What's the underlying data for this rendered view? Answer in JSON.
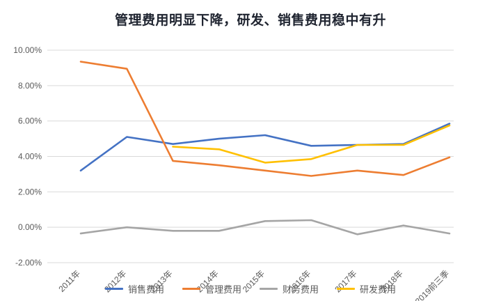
{
  "chart_data": {
    "type": "line",
    "title": "管理费用明显下降，研发、销售费用稳中有升",
    "categories": [
      "2011年",
      "2012年",
      "2013年",
      "2014年",
      "2015年",
      "2016年",
      "2017年",
      "2018年",
      "2019前三季"
    ],
    "series": [
      {
        "name": "销售费用",
        "color": "#4472C4",
        "values": [
          3.2,
          5.1,
          4.7,
          5.0,
          5.2,
          4.6,
          4.65,
          4.7,
          5.85
        ]
      },
      {
        "name": "管理费用",
        "color": "#ED7D31",
        "values": [
          9.35,
          8.95,
          3.75,
          3.5,
          3.2,
          2.9,
          3.2,
          2.95,
          3.95
        ]
      },
      {
        "name": "财务费用",
        "color": "#A5A5A5",
        "values": [
          -0.35,
          0.0,
          -0.2,
          -0.2,
          0.35,
          0.4,
          -0.4,
          0.1,
          -0.35
        ]
      },
      {
        "name": "研发费用",
        "color": "#FFC000",
        "values": [
          null,
          null,
          4.55,
          4.4,
          3.65,
          3.85,
          4.65,
          4.65,
          5.75
        ]
      }
    ],
    "ylabel": "",
    "xlabel": "",
    "ylim": [
      -2,
      10
    ],
    "y_ticks": [
      {
        "value": 10,
        "label": "10.00%"
      },
      {
        "value": 8,
        "label": "8.00%"
      },
      {
        "value": 6,
        "label": "6.00%"
      },
      {
        "value": 4,
        "label": "4.00%"
      },
      {
        "value": 2,
        "label": "2.00%"
      },
      {
        "value": 0,
        "label": "0.00%"
      },
      {
        "value": -2,
        "label": "-2.00%"
      }
    ],
    "grid": true,
    "legend_position": "bottom"
  }
}
